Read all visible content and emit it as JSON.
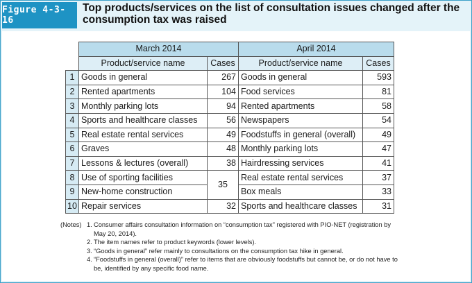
{
  "figure": {
    "label": "Figure 4-3-16",
    "title": "Top products/services on the list of consultation issues changed after the consumption tax was raised"
  },
  "table": {
    "march_group": "March 2014",
    "april_group": "April 2014",
    "col_product": "Product/service name",
    "col_cases": "Cases",
    "rows": [
      {
        "rank": "1",
        "march_name": "Goods in general",
        "march_cases": "267",
        "april_name": "Goods in general",
        "april_cases": "593"
      },
      {
        "rank": "2",
        "march_name": "Rented apartments",
        "march_cases": "104",
        "april_name": "Food services",
        "april_cases": "81"
      },
      {
        "rank": "3",
        "march_name": "Monthly parking lots",
        "march_cases": "94",
        "april_name": "Rented apartments",
        "april_cases": "58"
      },
      {
        "rank": "4",
        "march_name": "Sports and healthcare classes",
        "march_cases": "56",
        "april_name": "Newspapers",
        "april_cases": "54"
      },
      {
        "rank": "5",
        "march_name": "Real estate rental services",
        "march_cases": "49",
        "april_name": "Foodstuffs in general (overall)",
        "april_cases": "49"
      },
      {
        "rank": "6",
        "march_name": "Graves",
        "march_cases": "48",
        "april_name": "Monthly parking lots",
        "april_cases": "47"
      },
      {
        "rank": "7",
        "march_name": "Lessons & lectures (overall)",
        "march_cases": "38",
        "april_name": "Hairdressing services",
        "april_cases": "41"
      },
      {
        "rank": "8",
        "march_name": "Use of sporting facilities",
        "march_cases": "35",
        "april_name": "Real estate rental services",
        "april_cases": "37"
      },
      {
        "rank": "9",
        "march_name": "New-home construction",
        "march_cases": "",
        "april_name": "Box meals",
        "april_cases": "33"
      },
      {
        "rank": "10",
        "march_name": "Repair services",
        "march_cases": "32",
        "april_name": "Sports and healthcare classes",
        "april_cases": "31"
      }
    ]
  },
  "notes": {
    "label": "(Notes)",
    "items": [
      {
        "num": "1.",
        "text": "Consumer affairs consultation information on “consumption tax” registered with PIO-NET (registration by May 20, 2014)."
      },
      {
        "num": "2.",
        "text": "The item names refer to product keywords (lower levels)."
      },
      {
        "num": "3.",
        "text": "“Goods in general” refer mainly to consultations on the consumption tax hike in general."
      },
      {
        "num": "4.",
        "text": "“Foodstuffs in general (overall)” refer to items that are obviously foodstuffs but cannot be, or do not have to be, identified by any specific food name."
      }
    ]
  },
  "colors": {
    "badge": "#1e93c4",
    "frame_bg": "#e4f3f9",
    "group_header_bg": "#b9dcec",
    "col_header_bg": "#ddeef6",
    "rank_cell_bg": "#d6ebf4"
  }
}
